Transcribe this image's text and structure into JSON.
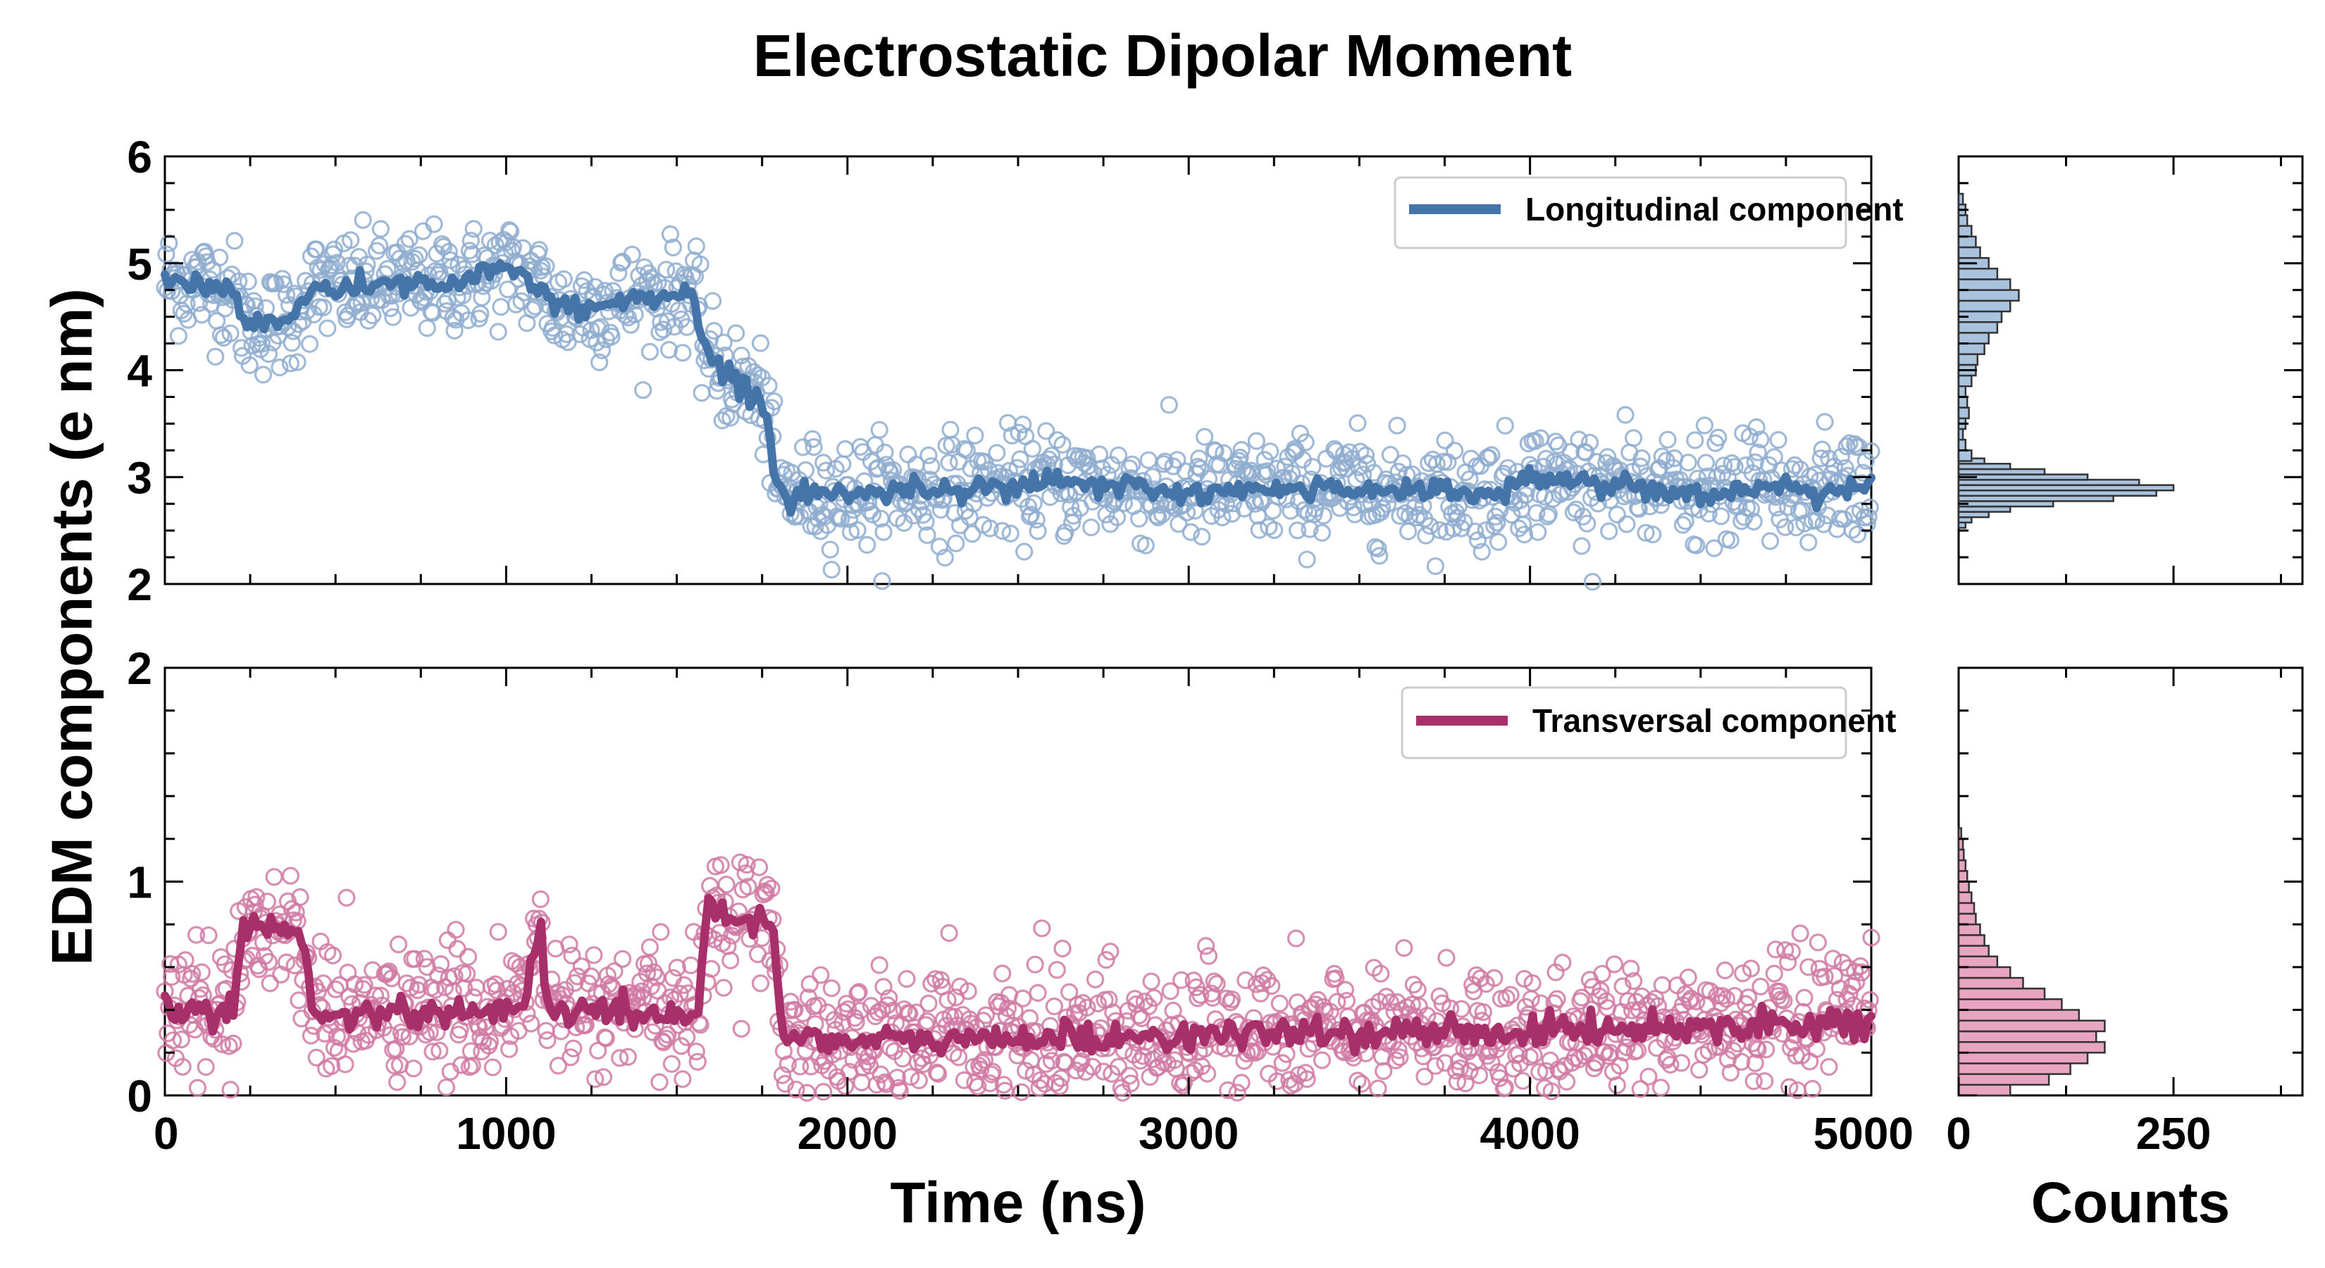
{
  "title": "Electrostatic Dipolar Moment",
  "chart_data": [
    {
      "name": "longitudinal-timeseries",
      "type": "scatter",
      "overlay_type": "line",
      "title": "Electrostatic Dipolar Moment",
      "xlabel": "Time (ns)",
      "ylabel": "EDM components (e nm)",
      "xlim": [
        0,
        5000
      ],
      "ylim": [
        2,
        6
      ],
      "xticks": [
        0,
        1000,
        2000,
        3000,
        4000,
        5000
      ],
      "yticks": [
        2,
        3,
        4,
        5,
        6
      ],
      "ytick_labels": [
        "2",
        "3",
        "4",
        "5",
        "6"
      ],
      "legend": "Longitudinal component",
      "legend_position": "top-right",
      "color": "#4575a8",
      "marker_color": "#8fadcf",
      "levels_x": [
        0,
        200,
        230,
        380,
        400,
        900,
        1000,
        1100,
        1150,
        1550,
        1570,
        1620,
        1700,
        1760,
        1790,
        1820,
        2000,
        2600,
        3000,
        3500,
        3900,
        4000,
        4500,
        5000
      ],
      "levels_y": [
        4.85,
        4.75,
        4.45,
        4.45,
        4.75,
        4.85,
        4.95,
        4.8,
        4.55,
        4.75,
        4.3,
        4.0,
        3.85,
        3.7,
        2.9,
        2.85,
        2.85,
        2.95,
        2.85,
        2.9,
        2.85,
        3.0,
        2.85,
        2.9
      ],
      "scatter_spread": 0.45
    },
    {
      "name": "transversal-timeseries",
      "type": "scatter",
      "overlay_type": "line",
      "xlabel": "Time (ns)",
      "xlim": [
        0,
        5000
      ],
      "ylim": [
        0,
        2
      ],
      "xticks": [
        0,
        1000,
        2000,
        3000,
        4000,
        5000
      ],
      "xtick_labels": [
        "0",
        "1000",
        "2000",
        "3000",
        "4000",
        "5000"
      ],
      "yticks": [
        0,
        1,
        2
      ],
      "ytick_labels": [
        "0",
        "1",
        "2"
      ],
      "legend": "Transversal component",
      "legend_position": "top-right",
      "color": "#a8306a",
      "marker_color": "#d07aa3",
      "levels_x": [
        0,
        200,
        230,
        400,
        440,
        1050,
        1080,
        1100,
        1120,
        1560,
        1590,
        1780,
        1810,
        2000,
        3000,
        4000,
        5000
      ],
      "levels_y": [
        0.4,
        0.4,
        0.8,
        0.75,
        0.38,
        0.4,
        0.65,
        0.85,
        0.4,
        0.38,
        0.85,
        0.8,
        0.3,
        0.25,
        0.28,
        0.3,
        0.35
      ],
      "scatter_spread": 0.28
    },
    {
      "name": "longitudinal-histogram",
      "type": "bar",
      "orientation": "horizontal",
      "xlabel": "Counts",
      "ylim": [
        2,
        6
      ],
      "xlim": [
        0,
        400
      ],
      "color": "#a9c2dd",
      "bin_centers": [
        2.55,
        2.6,
        2.65,
        2.7,
        2.75,
        2.8,
        2.85,
        2.9,
        2.95,
        3.0,
        3.05,
        3.1,
        3.15,
        3.2,
        3.3,
        3.4,
        3.5,
        3.6,
        3.7,
        3.8,
        3.9,
        4.0,
        4.1,
        4.2,
        4.3,
        4.4,
        4.5,
        4.6,
        4.7,
        4.8,
        4.9,
        5.0,
        5.1,
        5.2,
        5.3,
        5.4,
        5.5,
        5.6
      ],
      "counts": [
        8,
        15,
        35,
        60,
        110,
        180,
        230,
        250,
        210,
        150,
        100,
        60,
        30,
        15,
        8,
        5,
        8,
        12,
        10,
        8,
        15,
        20,
        22,
        30,
        35,
        45,
        50,
        60,
        70,
        60,
        45,
        35,
        25,
        20,
        15,
        10,
        8,
        5
      ]
    },
    {
      "name": "transversal-histogram",
      "type": "bar",
      "orientation": "horizontal",
      "xlabel": "Counts",
      "xticks": [
        0,
        250
      ],
      "xtick_labels": [
        "0",
        "250"
      ],
      "ylim": [
        0,
        2
      ],
      "xlim": [
        0,
        400
      ],
      "color": "#e7a5c2",
      "bin_centers": [
        0.025,
        0.075,
        0.125,
        0.175,
        0.225,
        0.275,
        0.325,
        0.375,
        0.425,
        0.475,
        0.525,
        0.575,
        0.625,
        0.675,
        0.725,
        0.775,
        0.825,
        0.875,
        0.925,
        0.975,
        1.025,
        1.075,
        1.125,
        1.175,
        1.225
      ],
      "counts": [
        60,
        105,
        130,
        150,
        170,
        160,
        170,
        140,
        120,
        100,
        75,
        60,
        45,
        35,
        30,
        25,
        20,
        18,
        15,
        12,
        10,
        8,
        6,
        5,
        3
      ]
    }
  ]
}
